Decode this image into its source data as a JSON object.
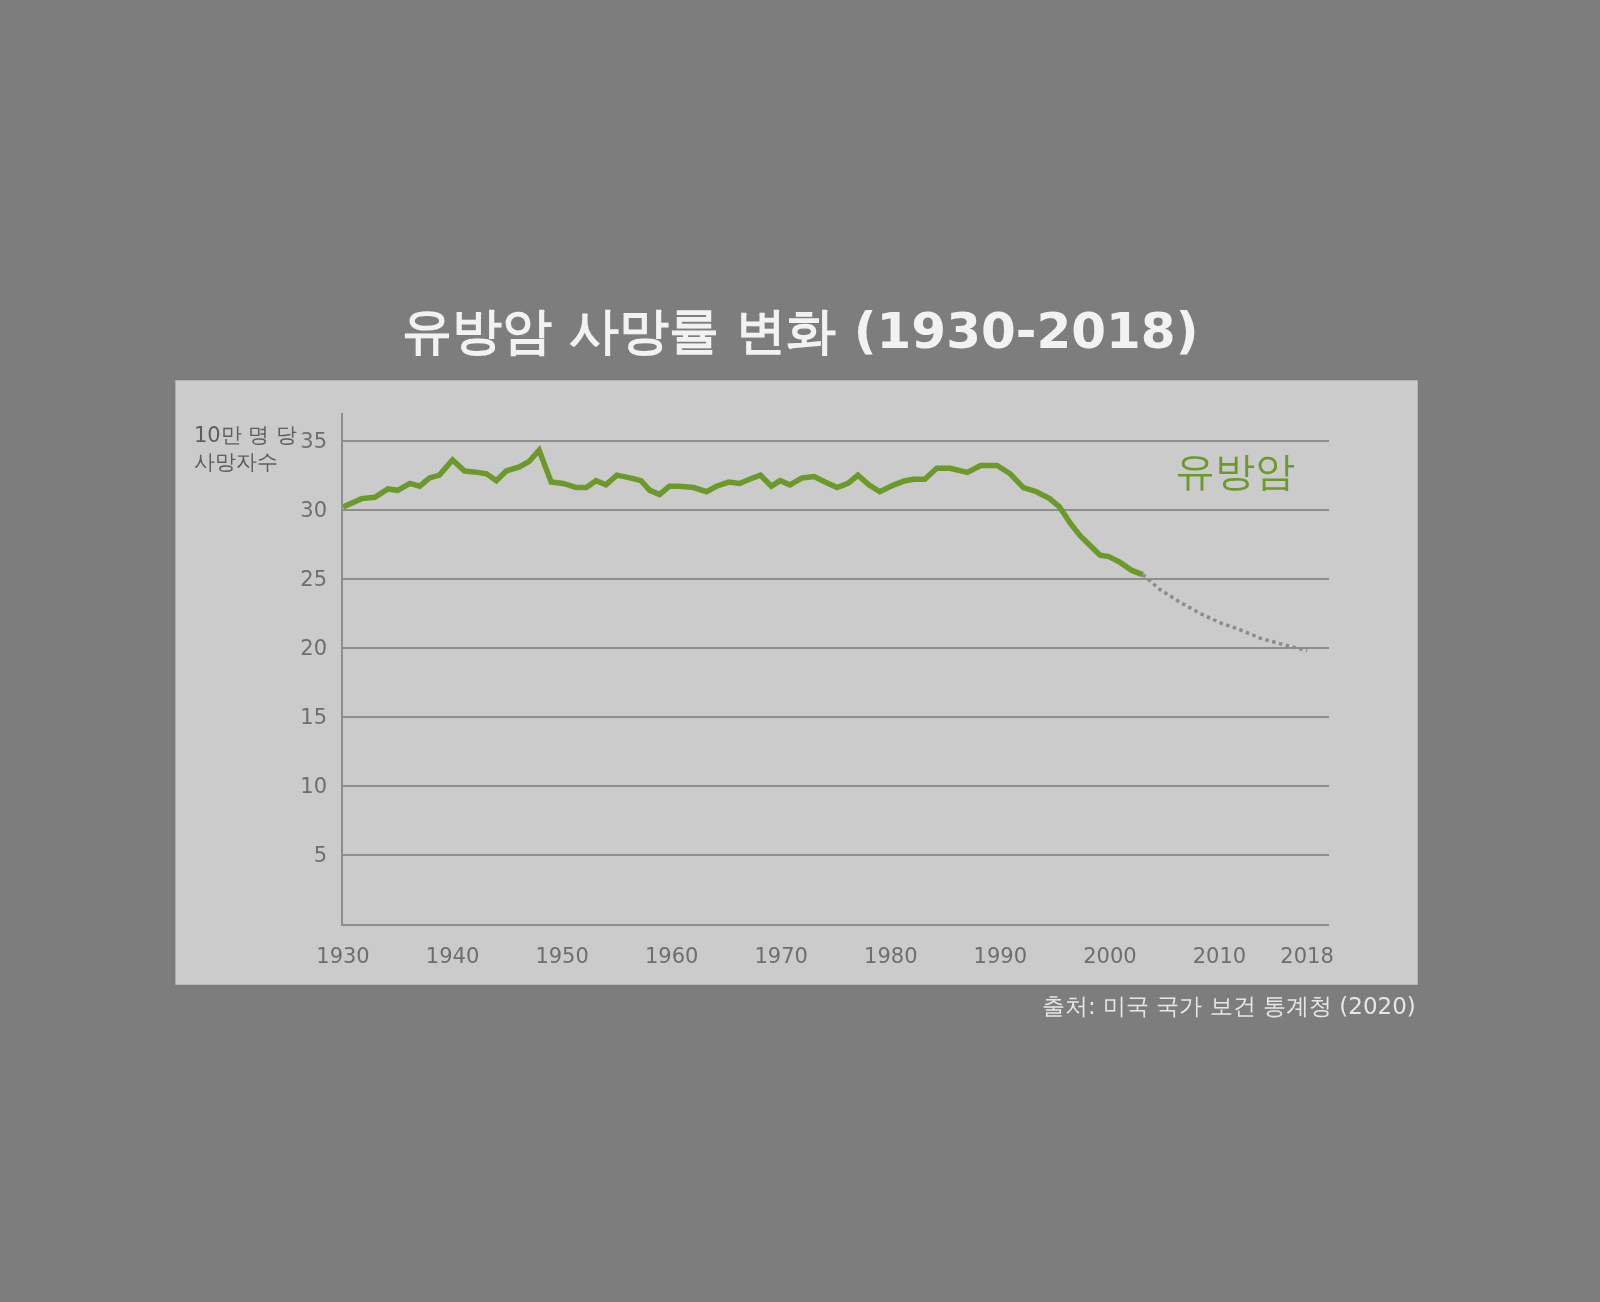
{
  "chart_data": {
    "type": "line",
    "title": "유방암 사망률 변화 (1930-2018)",
    "ylabel": "10만 명 당\n사망자수",
    "annotations": [
      "출처: 미국 국가 보건 통계청 (2020)"
    ],
    "xlim": [
      1930,
      2020
    ],
    "xticks": [
      1930,
      1940,
      1950,
      1960,
      1970,
      1980,
      1990,
      2000,
      2010,
      2018
    ],
    "ylim": [
      0,
      37
    ],
    "yticks": [
      5,
      10,
      15,
      20,
      25,
      30,
      35
    ],
    "grid": "y",
    "legend": false,
    "marker": "none",
    "series": [
      {
        "name": "유방암",
        "color": "#6b9a2b",
        "line_style": "solid",
        "x": [
          1930,
          1931.7,
          1932.9,
          1934.1,
          1935.0,
          1936.1,
          1937.0,
          1937.9,
          1938.8,
          1940.0,
          1941.1,
          1942.3,
          1943.1,
          1944.0,
          1944.9,
          1946.1,
          1947.0,
          1947.9,
          1949.0,
          1950.1,
          1951.3,
          1952.2,
          1953.1,
          1954.0,
          1955.0,
          1956.2,
          1957.2,
          1958.0,
          1958.9,
          1959.8,
          1960.7,
          1962.0,
          1963.2,
          1964.1,
          1965.2,
          1966.2,
          1967.1,
          1968.1,
          1969.1,
          1969.9,
          1970.8,
          1971.9,
          1973.0,
          1974.0,
          1975.1,
          1976.1,
          1977.0,
          1978.0,
          1979.0,
          1980.3,
          1981.3,
          1982.1,
          1983.1,
          1984.2,
          1985.4,
          1987.0,
          1988.2,
          1989.7,
          1990.9,
          1992.1,
          1993.3,
          1994.5,
          1995.4,
          1996.4,
          1997.3,
          1998.2,
          1999.1,
          1999.9,
          2000.9,
          2002.0,
          2003.0
        ],
        "values": [
          30.2,
          30.8,
          30.9,
          31.5,
          31.4,
          31.9,
          31.7,
          32.3,
          32.5,
          33.6,
          32.8,
          32.7,
          32.6,
          32.1,
          32.8,
          33.1,
          33.5,
          34.3,
          32.0,
          31.9,
          31.6,
          31.6,
          32.1,
          31.8,
          32.5,
          32.3,
          32.1,
          31.4,
          31.1,
          31.7,
          31.7,
          31.6,
          31.3,
          31.7,
          32.0,
          31.9,
          32.2,
          32.5,
          31.7,
          32.1,
          31.8,
          32.3,
          32.4,
          32.0,
          31.6,
          31.9,
          32.5,
          31.8,
          31.3,
          31.8,
          32.1,
          32.2,
          32.2,
          33.0,
          33.0,
          32.7,
          33.2,
          33.2,
          32.6,
          31.6,
          31.3,
          30.8,
          30.2,
          29.0,
          28.1,
          27.4,
          26.7,
          26.6,
          26.2,
          25.6,
          25.3
        ]
      },
      {
        "color": "#8c8c8c",
        "line_style": "dotted",
        "x": [
          2003.0,
          2004.6,
          2006.4,
          2008.2,
          2010.1,
          2011.9,
          2013.7,
          2015.5,
          2018.0
        ],
        "values": [
          25.3,
          24.2,
          23.3,
          22.5,
          21.8,
          21.3,
          20.7,
          20.3,
          19.8
        ]
      }
    ]
  }
}
